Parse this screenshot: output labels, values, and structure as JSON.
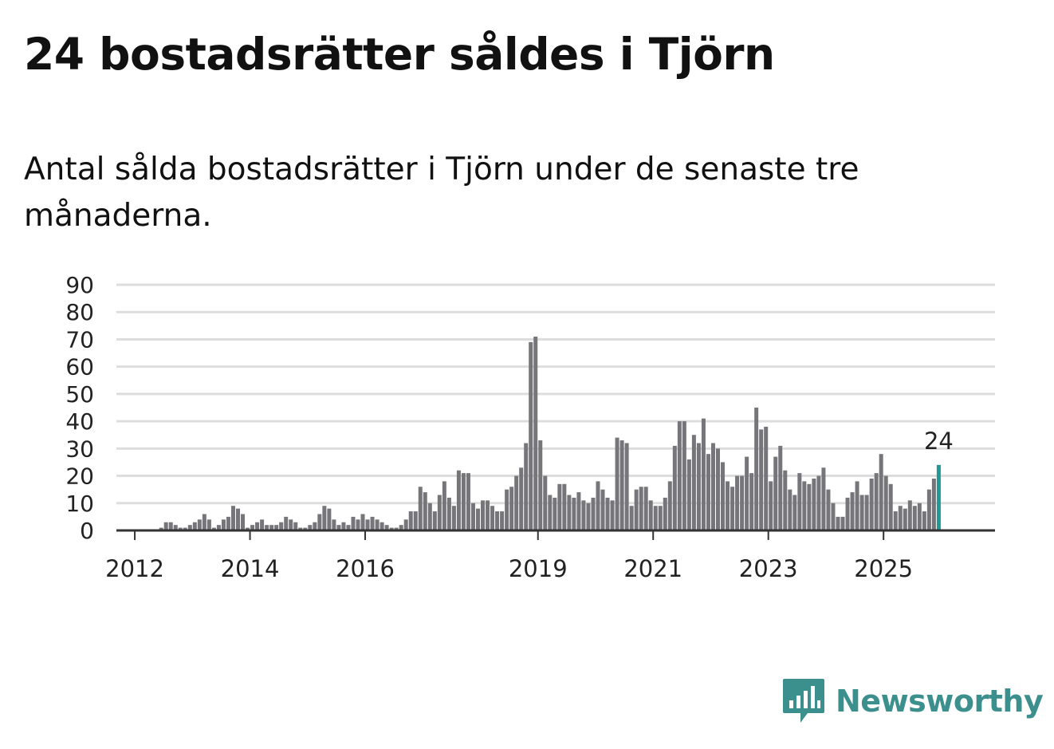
{
  "title": "24 bostadsrätter såldes i Tjörn",
  "subtitle": "Antal sålda bostadsrätter i Tjörn under de senaste tre månaderna.",
  "brand": {
    "name": "Newsworthy",
    "icon": "newsworthy-logo-icon",
    "color": "#3b8f8c"
  },
  "colors": {
    "bar": "#76767a",
    "highlight": "#1f9a93",
    "grid": "#dddddd",
    "axis": "#333333"
  },
  "chart_data": {
    "type": "bar",
    "title": "Antal sålda bostadsrätter i Tjörn",
    "x_start": "2011-09",
    "frequency": "monthly",
    "ylim": [
      0,
      90
    ],
    "yticks": [
      0,
      10,
      20,
      30,
      40,
      50,
      60,
      70,
      80,
      90
    ],
    "xticks": [
      {
        "label": "2012",
        "date": "2012-01"
      },
      {
        "label": "2014",
        "date": "2014-01"
      },
      {
        "label": "2016",
        "date": "2016-01"
      },
      {
        "label": "2019",
        "date": "2019-01"
      },
      {
        "label": "2021",
        "date": "2021-01"
      },
      {
        "label": "2023",
        "date": "2023-01"
      },
      {
        "label": "2025",
        "date": "2025-01"
      }
    ],
    "values": [
      0,
      0,
      0,
      0,
      0,
      0,
      0,
      0,
      0,
      1,
      3,
      3,
      2,
      1,
      1,
      2,
      3,
      4,
      6,
      4,
      1,
      2,
      4,
      5,
      9,
      8,
      6,
      1,
      2,
      3,
      4,
      2,
      2,
      2,
      3,
      5,
      4,
      3,
      1,
      1,
      2,
      3,
      6,
      9,
      8,
      4,
      2,
      3,
      2,
      5,
      4,
      6,
      4,
      5,
      4,
      3,
      2,
      1,
      1,
      2,
      4,
      7,
      7,
      16,
      14,
      10,
      7,
      13,
      18,
      12,
      9,
      22,
      21,
      21,
      10,
      8,
      11,
      11,
      9,
      7,
      7,
      15,
      16,
      20,
      23,
      32,
      69,
      71,
      33,
      20,
      13,
      12,
      17,
      17,
      13,
      12,
      14,
      11,
      10,
      12,
      18,
      15,
      12,
      11,
      34,
      33,
      32,
      9,
      15,
      16,
      16,
      11,
      9,
      9,
      12,
      18,
      31,
      40,
      40,
      26,
      35,
      32,
      41,
      28,
      32,
      30,
      25,
      18,
      16,
      20,
      20,
      27,
      21,
      45,
      37,
      38,
      18,
      27,
      31,
      22,
      15,
      13,
      21,
      18,
      17,
      19,
      20,
      23,
      15,
      10,
      5,
      5,
      12,
      14,
      18,
      13,
      13,
      19,
      21,
      28,
      20,
      17,
      7,
      9,
      8,
      11,
      9,
      10,
      7,
      15,
      19,
      24
    ],
    "highlight_last": true,
    "annotation": {
      "label": "24",
      "value": 24
    }
  }
}
